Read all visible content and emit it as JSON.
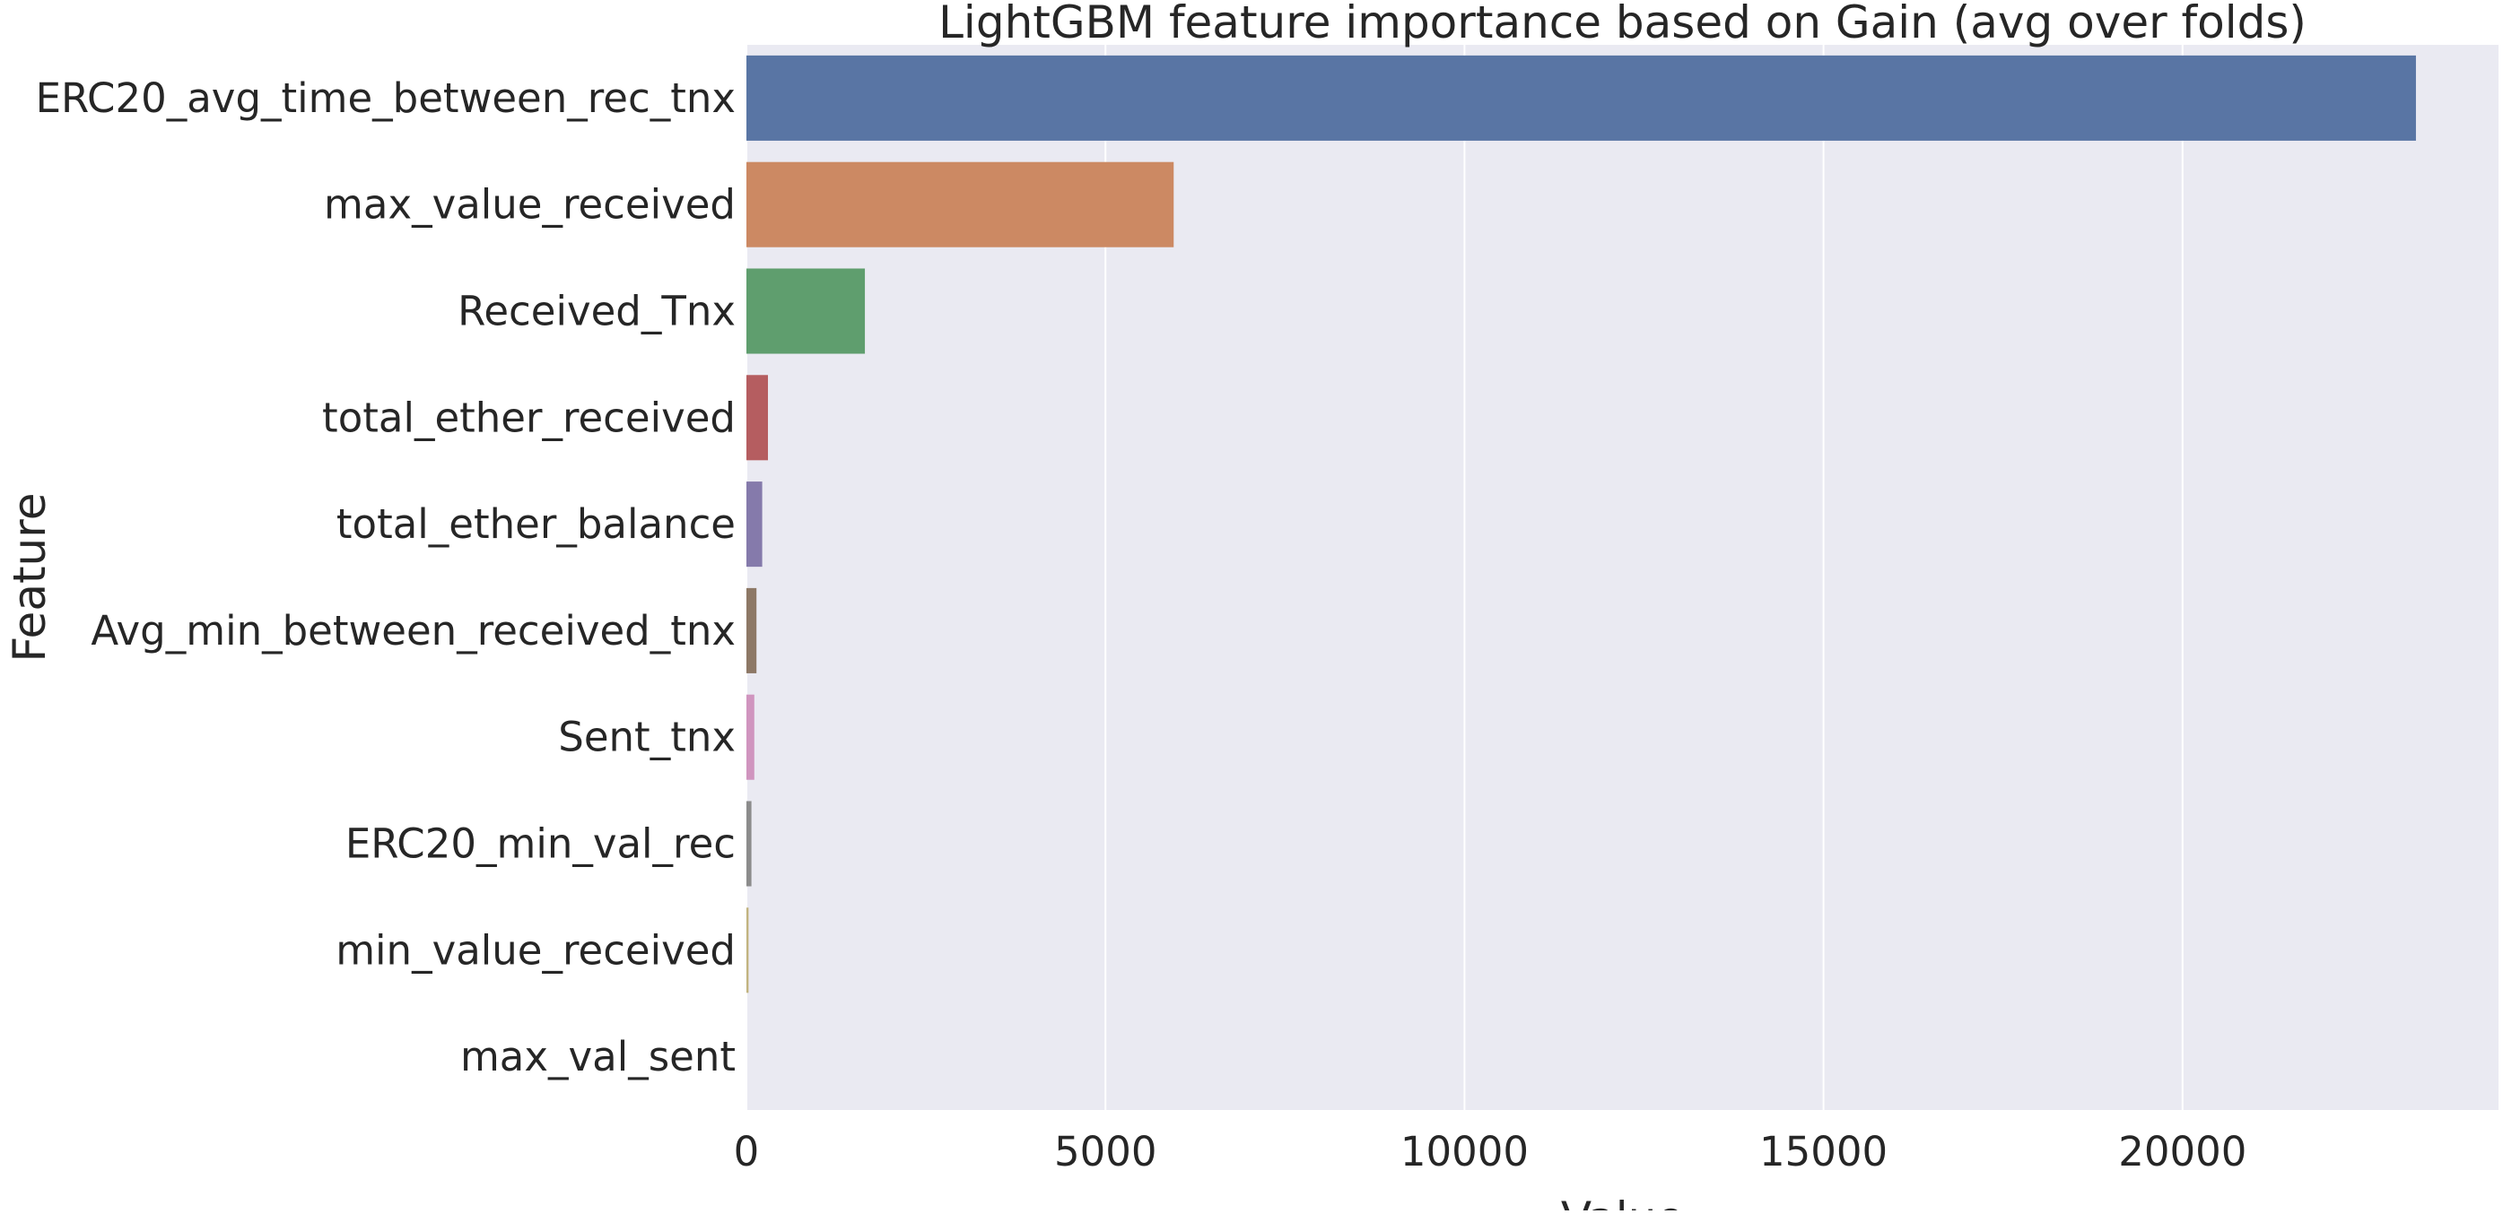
{
  "chart_data": {
    "type": "bar",
    "orientation": "horizontal",
    "title": "LightGBM feature importance based on Gain (avg over folds)",
    "xlabel": "Value",
    "ylabel": "Feature",
    "categories": [
      "ERC20_avg_time_between_rec_tnx",
      "max_value_received",
      "Received_Tnx",
      "total_ether_received",
      "total_ether_balance",
      "Avg_min_between_received_tnx",
      "Sent_tnx",
      "ERC20_min_val_rec",
      "min_value_received",
      "max_val_sent"
    ],
    "values": [
      23250,
      5950,
      1650,
      300,
      220,
      140,
      110,
      70,
      30,
      0
    ],
    "xlim": [
      0,
      24400
    ],
    "x_ticks": [
      0,
      5000,
      10000,
      15000,
      20000
    ],
    "x_tick_labels": [
      "0",
      "5000",
      "10000",
      "15000",
      "20000"
    ],
    "grid": true,
    "legend": "none",
    "colors": [
      "#5975a4",
      "#cc8963",
      "#5f9e6e",
      "#b55d60",
      "#857aab",
      "#8d7866",
      "#d095bf",
      "#8c8c8c",
      "#c1b37f",
      "#6e9ab8"
    ],
    "background_color": "#eaeaf2",
    "grid_color": "#ffffff"
  }
}
